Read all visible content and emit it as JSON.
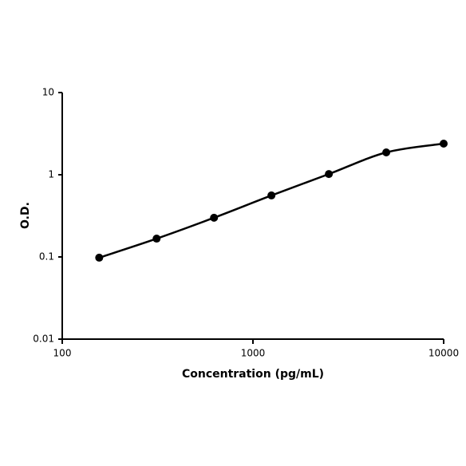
{
  "chart_data": {
    "type": "line",
    "x": [
      156.25,
      312.5,
      625,
      1250,
      2500,
      5000,
      10000
    ],
    "series": [
      {
        "color": "#000000",
        "values": [
          0.098,
          0.167,
          0.3,
          0.56,
          1.02,
          1.87,
          2.39
        ]
      }
    ],
    "xlabel": "Concentration (pg/mL)",
    "ylabel": "O.D.",
    "xscale": "log",
    "yscale": "log",
    "xlim": [
      100,
      10000
    ],
    "ylim": [
      0.01,
      10
    ],
    "xticks": [
      100,
      1000,
      10000
    ],
    "yticks": [
      0.01,
      0.1,
      1,
      10
    ]
  }
}
